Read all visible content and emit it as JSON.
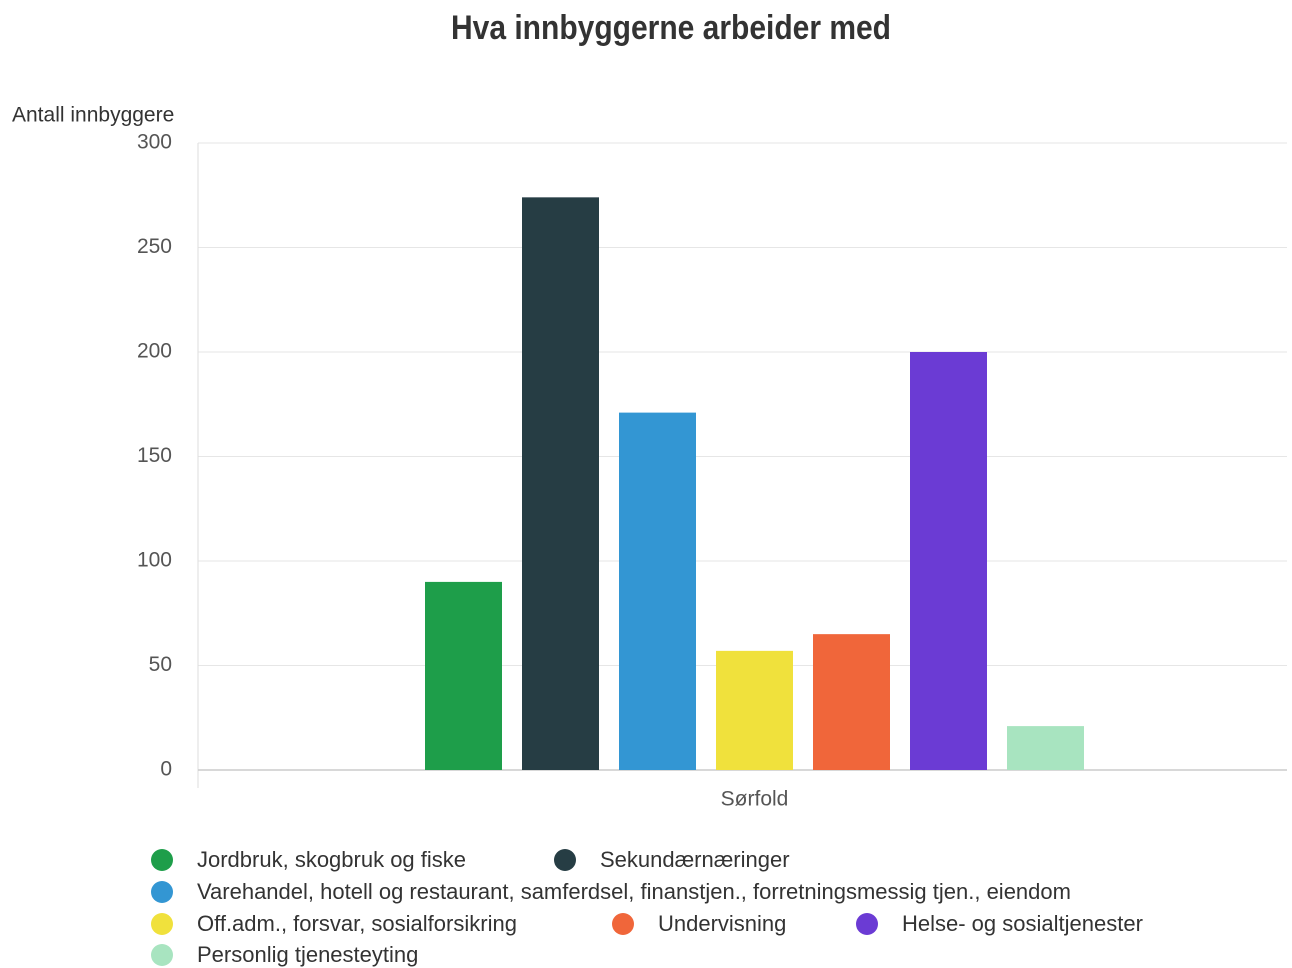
{
  "chart_data": {
    "type": "bar",
    "title": "Hva innbyggerne arbeider med",
    "y_label": "Antall innbyggere",
    "categories": [
      "Sørfold"
    ],
    "series": [
      {
        "name": "Jordbruk, skogbruk og fiske",
        "color": "#1e9e4a",
        "values": [
          90
        ]
      },
      {
        "name": "Sekundærnæringer",
        "color": "#263d44",
        "values": [
          274
        ]
      },
      {
        "name": "Varehandel, hotell og restaurant, samferdsel, finanstjen., forretningsmessig tjen., eiendom",
        "color": "#3396d3",
        "values": [
          171
        ]
      },
      {
        "name": "Off.adm., forsvar, sosialforsikring",
        "color": "#f0e13c",
        "values": [
          57
        ]
      },
      {
        "name": "Undervisning",
        "color": "#f0663a",
        "values": [
          65
        ]
      },
      {
        "name": "Helse- og sosialtjenester",
        "color": "#6b3bd4",
        "values": [
          200
        ]
      },
      {
        "name": "Personlig tjenesteyting",
        "color": "#a8e4c0",
        "values": [
          21
        ]
      }
    ],
    "ylim": [
      0,
      300
    ],
    "yticks": [
      0,
      50,
      100,
      150,
      200,
      250,
      300
    ],
    "grid": true
  }
}
